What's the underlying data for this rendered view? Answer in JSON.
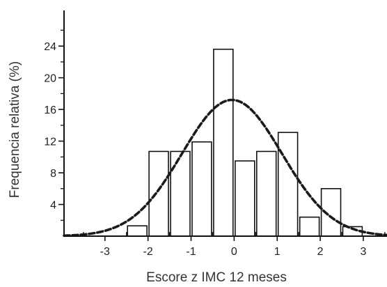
{
  "chart_data": {
    "type": "bar",
    "xlabel": "Escore z IMC 12 meses",
    "ylabel": "Frequencia relativa (%)",
    "xlim": [
      -3.95,
      3.55
    ],
    "ylim": [
      0,
      28.5
    ],
    "x_ticks": [
      -3,
      -2,
      -1,
      0,
      1,
      2,
      3
    ],
    "x_tick_labels": [
      "-3",
      "-2",
      "-1",
      "0",
      "1",
      "2",
      "3"
    ],
    "y_ticks": [
      4,
      8,
      12,
      16,
      20,
      24
    ],
    "y_tick_labels": [
      "4",
      "8",
      "12",
      "16",
      "20",
      "24"
    ],
    "bin_width": 0.5,
    "bars": [
      {
        "x": -2.25,
        "value": 1.3
      },
      {
        "x": -1.75,
        "value": 10.7
      },
      {
        "x": -1.25,
        "value": 10.7
      },
      {
        "x": -0.75,
        "value": 11.9
      },
      {
        "x": -0.25,
        "value": 23.6
      },
      {
        "x": 0.25,
        "value": 9.5
      },
      {
        "x": 0.75,
        "value": 10.7
      },
      {
        "x": 1.25,
        "value": 13.1
      },
      {
        "x": 1.75,
        "value": 2.4
      },
      {
        "x": 2.25,
        "value": 6.0
      },
      {
        "x": 2.75,
        "value": 1.2
      }
    ],
    "curve": {
      "style": "dashed",
      "kind": "normal-fit",
      "mean": -0.05,
      "sd": 1.16,
      "peak": 17.2
    },
    "bar_fill": "#ffffff",
    "bar_stroke": "#111111",
    "curve_color": "#1a1a1a",
    "grid": false,
    "legend": "none"
  }
}
